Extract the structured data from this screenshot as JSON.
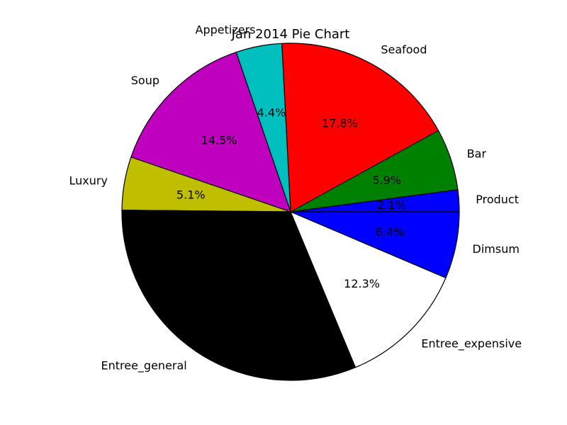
{
  "chart_data": {
    "type": "pie",
    "title": "Jan 2014 Pie Chart",
    "start_angle_deg": 0,
    "direction": "counterclockwise",
    "legend": "none",
    "slices": [
      {
        "label": "Product",
        "value": 2.1,
        "pct_label": "2.1%",
        "color": "#0000ff"
      },
      {
        "label": "Bar",
        "value": 5.9,
        "pct_label": "5.9%",
        "color": "#008000"
      },
      {
        "label": "Seafood",
        "value": 17.8,
        "pct_label": "17.8%",
        "color": "#ff0000"
      },
      {
        "label": "Appetizers",
        "value": 4.4,
        "pct_label": "4.4%",
        "color": "#00bfbf"
      },
      {
        "label": "Soup",
        "value": 14.5,
        "pct_label": "14.5%",
        "color": "#bf00bf"
      },
      {
        "label": "Luxury",
        "value": 5.1,
        "pct_label": "5.1%",
        "color": "#bfbf00"
      },
      {
        "label": "Entree_general",
        "value": 31.4,
        "pct_label": "",
        "color": "#000000"
      },
      {
        "label": "Entree_expensive",
        "value": 12.3,
        "pct_label": "12.3%",
        "color": "#ffffff"
      },
      {
        "label": "Dimsum",
        "value": 6.4,
        "pct_label": "6.4%",
        "color": "#0000ff"
      }
    ]
  }
}
